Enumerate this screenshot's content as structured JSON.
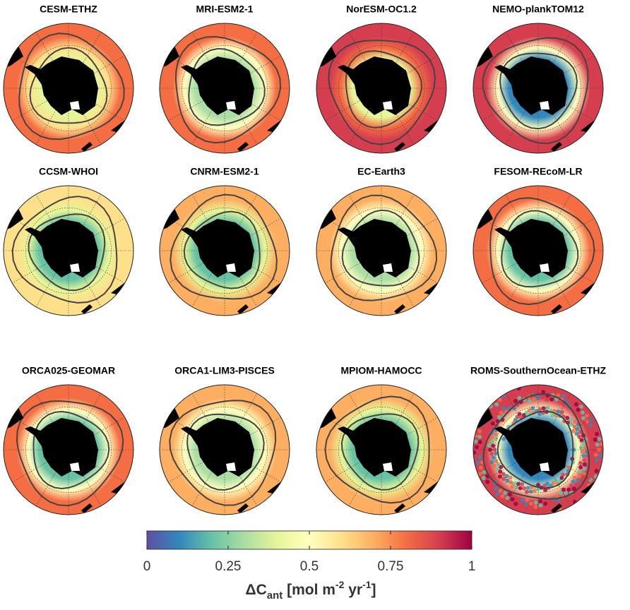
{
  "panels": [
    {
      "title": "CESM-ETHZ"
    },
    {
      "title": "MRI-ESM2-1"
    },
    {
      "title": "NorESM-OC1.2"
    },
    {
      "title": "NEMO-plankTOM12"
    },
    {
      "title": "CCSM-WHOI"
    },
    {
      "title": "CNRM-ESM2-1"
    },
    {
      "title": "EC-Earth3"
    },
    {
      "title": "FESOM-REcoM-LR"
    },
    {
      "title": "ORCA025-GEOMAR"
    },
    {
      "title": "ORCA1-LIM3-PISCES"
    },
    {
      "title": "MPIOM-HAMOCC"
    },
    {
      "title": "ROMS-SouthernOcean-ETHZ"
    }
  ],
  "colorbar": {
    "lim": [
      0,
      1
    ],
    "ticks": [
      0,
      0.25,
      0.5,
      0.75,
      1
    ],
    "colormap": [
      "#5e4fa2",
      "#3288bd",
      "#66c2a5",
      "#abdda4",
      "#e6f598",
      "#ffffbf",
      "#fee08b",
      "#fdae61",
      "#f46d43",
      "#d53e4f",
      "#9e0142"
    ],
    "label": [
      "ΔC",
      "ant",
      " [mol m",
      "-2",
      " yr",
      "-1",
      "]"
    ]
  }
}
